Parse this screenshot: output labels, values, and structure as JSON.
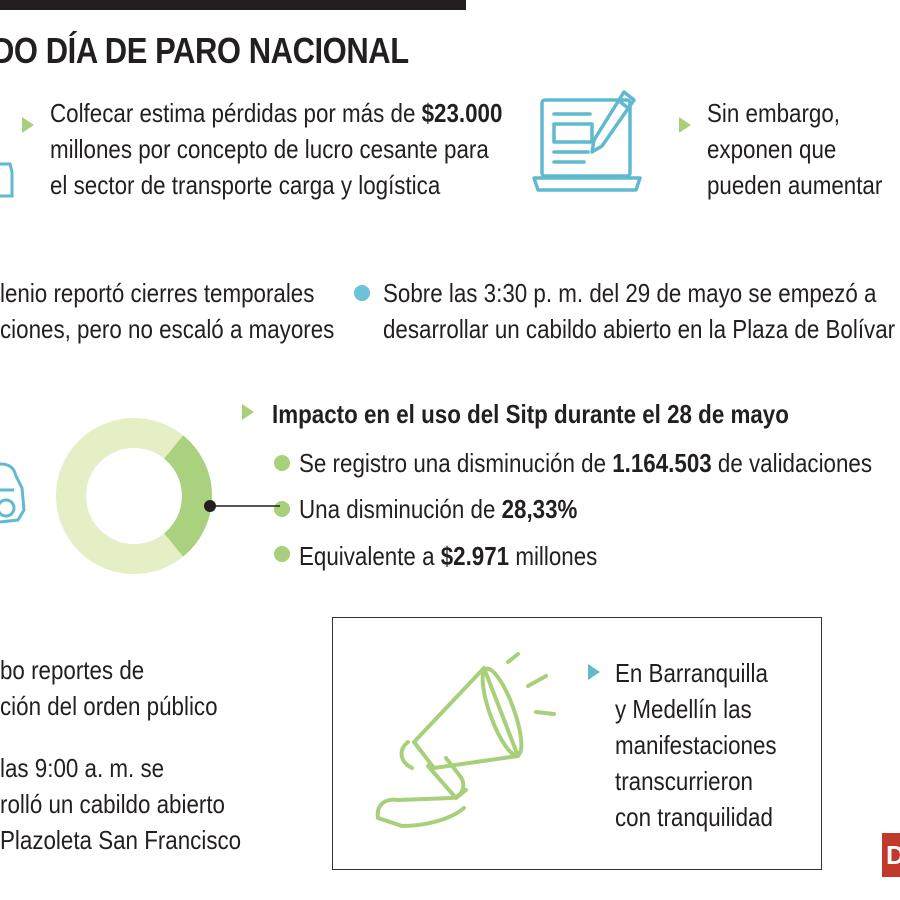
{
  "title": "DO DÍA DE PARO NACIONAL",
  "block1": {
    "line1_pre": "Colfecar estima pérdidas por más de ",
    "line1_bold": "$23.000",
    "line2": "millones por concepto de lucro cesante para",
    "line3": "el sector de transporte carga y logística"
  },
  "block2": {
    "line1": "Sin embargo,",
    "line2": "exponen que",
    "line3": "pueden aumentar"
  },
  "block3": {
    "line1": "lenio reportó cierres temporales",
    "line2": "ciones, pero no escaló a mayores"
  },
  "block4": {
    "line1": "Sobre las 3:30 p. m. del 29 de mayo se empezó a",
    "line2": "desarrollar un cabildo abierto en la Plaza de Bolívar"
  },
  "sitp": {
    "heading": "Impacto en el uso del Sitp durante el 28 de mayo",
    "items": [
      {
        "pre": "Se registro una disminución de ",
        "bold": "1.164.503",
        "post": " de validaciones"
      },
      {
        "pre": "Una disminución de ",
        "bold": "28,33%",
        "post": ""
      },
      {
        "pre": "Equivalente a ",
        "bold": "$2.971",
        "post": " millones"
      }
    ],
    "donut_fraction": 0.2833,
    "colors": {
      "ring": "#e5efc5",
      "slice": "#a9d17e"
    }
  },
  "block5": {
    "line1": "bo reportes de",
    "line2": "ción del orden público"
  },
  "block6": {
    "line1": "las 9:00 a. m. se",
    "line2": "rolló un cabildo abierto",
    "line3": "Plazoleta San Francisco"
  },
  "box": {
    "line1": "En Barranquilla",
    "line2": "y Medellín las",
    "line3": "manifestaciones",
    "line4": "transcurrieron",
    "line5": "con tranquilidad"
  },
  "logo_letter": "D",
  "icons": [
    "document-pencil-icon",
    "megaphone-icon",
    "car-icon",
    "truck-icon"
  ]
}
